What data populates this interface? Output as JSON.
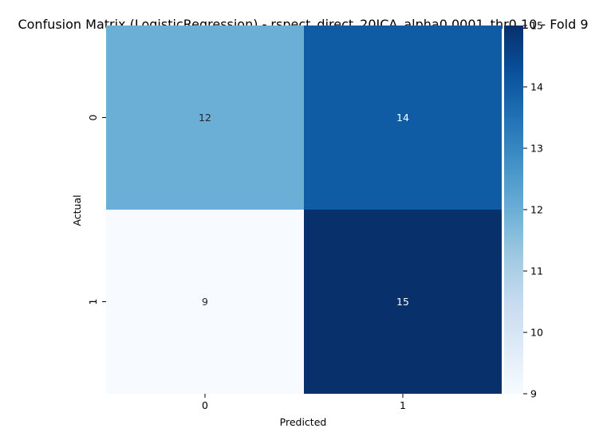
{
  "chart_data": {
    "type": "heatmap",
    "title": "Confusion Matrix (LogisticRegression) - rspect_direct_20ICA_alpha0.0001_thr0.10 - Fold 9",
    "xlabel": "Predicted",
    "ylabel": "Actual",
    "x_categories": [
      "0",
      "1"
    ],
    "y_categories": [
      "0",
      "1"
    ],
    "values": [
      [
        12,
        14
      ],
      [
        9,
        15
      ]
    ],
    "colormap": "Blues",
    "vmin": 9,
    "vmax": 15,
    "colorbar_ticks": [
      "9",
      "10",
      "11",
      "12",
      "13",
      "14",
      "15"
    ],
    "grid": false,
    "annotations": true
  }
}
